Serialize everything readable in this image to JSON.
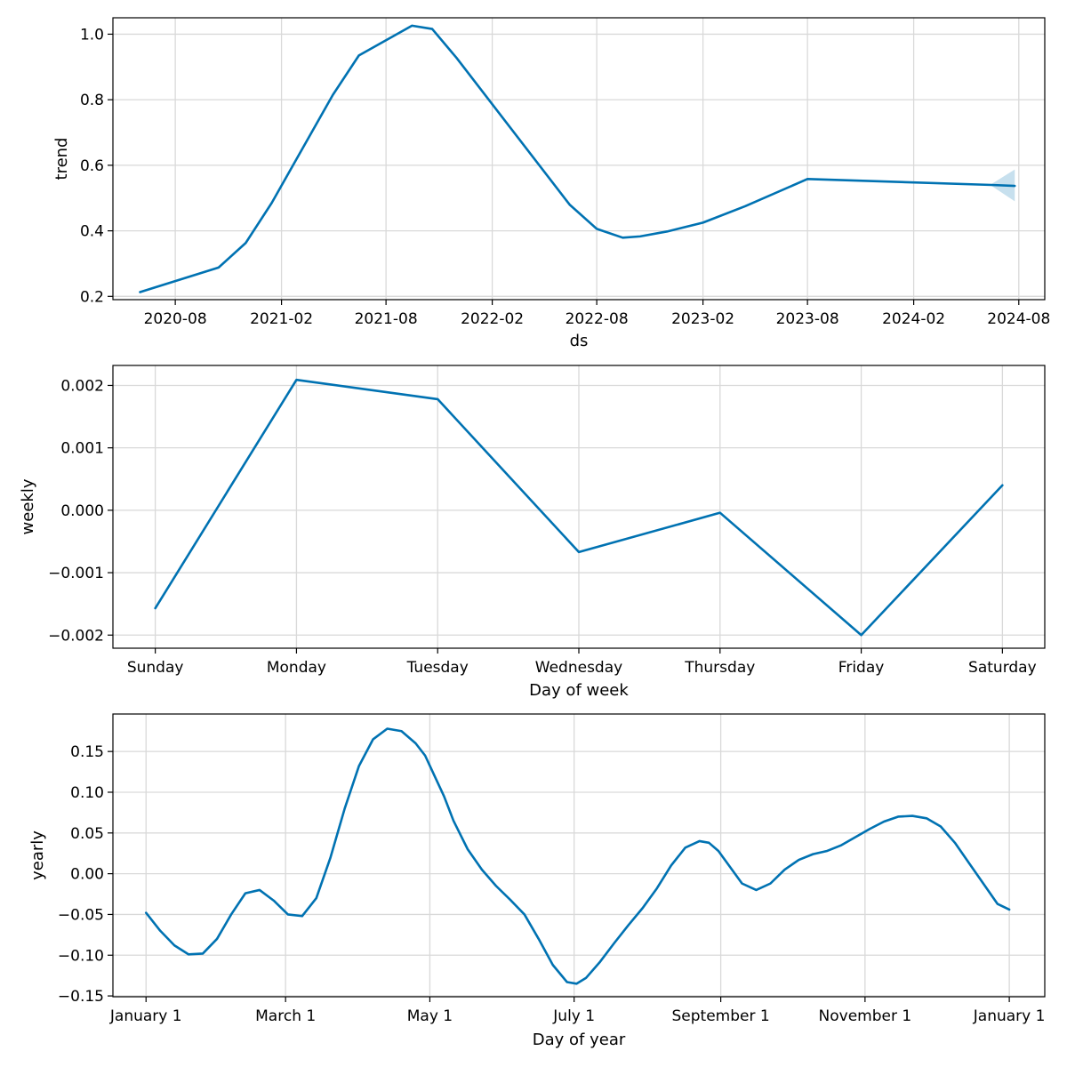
{
  "colors": {
    "line": "#0072B2",
    "band": "#0072B2",
    "grid": "#d9d9d9"
  },
  "chart_data": [
    {
      "type": "line",
      "xlabel": "ds",
      "ylabel": "trend",
      "x_type": "date",
      "xlim": [
        "2020-04-15",
        "2024-09-15"
      ],
      "ylim": [
        0.19,
        1.05
      ],
      "grid": true,
      "x_ticks": [
        {
          "value": "2020-08-01",
          "label": "2020-08"
        },
        {
          "value": "2021-02-01",
          "label": "2021-02"
        },
        {
          "value": "2021-08-01",
          "label": "2021-08"
        },
        {
          "value": "2022-02-01",
          "label": "2022-02"
        },
        {
          "value": "2022-08-01",
          "label": "2022-08"
        },
        {
          "value": "2023-02-01",
          "label": "2023-02"
        },
        {
          "value": "2023-08-01",
          "label": "2023-08"
        },
        {
          "value": "2024-02-01",
          "label": "2024-02"
        },
        {
          "value": "2024-08-01",
          "label": "2024-08"
        }
      ],
      "y_ticks": [
        {
          "value": 0.2,
          "label": "0.2"
        },
        {
          "value": 0.4,
          "label": "0.4"
        },
        {
          "value": 0.6,
          "label": "0.6"
        },
        {
          "value": 0.8,
          "label": "0.8"
        },
        {
          "value": 1.0,
          "label": "1.0"
        }
      ],
      "series": [
        {
          "x": [
            "2020-06-01",
            "2020-10-15",
            "2020-12-01",
            "2021-01-15",
            "2021-05-01",
            "2021-06-15",
            "2021-09-15",
            "2021-10-20",
            "2021-12-01",
            "2022-06-15",
            "2022-08-01",
            "2022-09-15",
            "2022-10-15",
            "2022-12-01",
            "2023-02-01",
            "2023-04-15",
            "2023-08-01",
            "2024-06-15",
            "2024-07-25"
          ],
          "y": [
            0.213,
            0.288,
            0.363,
            0.485,
            0.815,
            0.935,
            1.026,
            1.016,
            0.928,
            0.48,
            0.406,
            0.379,
            0.383,
            0.398,
            0.425,
            0.475,
            0.558,
            0.54,
            0.537
          ]
        }
      ],
      "band": {
        "x": [
          "2024-06-15",
          "2024-07-25"
        ],
        "lower": [
          0.537,
          0.49
        ],
        "upper": [
          0.543,
          0.587
        ]
      }
    },
    {
      "type": "line",
      "xlabel": "Day of week",
      "ylabel": "weekly",
      "xlim": [
        -0.3,
        6.3
      ],
      "ylim": [
        -0.00221,
        0.00232
      ],
      "grid": true,
      "categories": [
        "Sunday",
        "Monday",
        "Tuesday",
        "Wednesday",
        "Thursday",
        "Friday",
        "Saturday"
      ],
      "y_ticks": [
        {
          "value": -0.002,
          "label": "−0.002"
        },
        {
          "value": -0.001,
          "label": "−0.001"
        },
        {
          "value": 0.0,
          "label": "0.000"
        },
        {
          "value": 0.001,
          "label": "0.001"
        },
        {
          "value": 0.002,
          "label": "0.002"
        }
      ],
      "series": [
        {
          "values": [
            -0.00157,
            0.00209,
            0.00178,
            -0.00067,
            -4e-05,
            -0.002,
            0.0004
          ]
        }
      ]
    },
    {
      "type": "line",
      "xlabel": "Day of year",
      "ylabel": "yearly",
      "xlim": [
        -14,
        380
      ],
      "ylim": [
        -0.151,
        0.196
      ],
      "grid": true,
      "x_ticks": [
        {
          "value": 0,
          "label": "January 1"
        },
        {
          "value": 59,
          "label": "March 1"
        },
        {
          "value": 120,
          "label": "May 1"
        },
        {
          "value": 181,
          "label": "July 1"
        },
        {
          "value": 243,
          "label": "September 1"
        },
        {
          "value": 304,
          "label": "November 1"
        },
        {
          "value": 365,
          "label": "January 1"
        }
      ],
      "y_ticks": [
        {
          "value": -0.15,
          "label": "−0.15"
        },
        {
          "value": -0.1,
          "label": "−0.10"
        },
        {
          "value": -0.05,
          "label": "−0.05"
        },
        {
          "value": 0.0,
          "label": "0.00"
        },
        {
          "value": 0.05,
          "label": "0.05"
        },
        {
          "value": 0.1,
          "label": "0.10"
        },
        {
          "value": 0.15,
          "label": "0.15"
        }
      ],
      "series": [
        {
          "x": [
            0,
            6,
            12,
            18,
            24,
            30,
            36,
            42,
            48,
            54,
            60,
            66,
            72,
            78,
            84,
            90,
            96,
            102,
            108,
            114,
            118,
            122,
            126,
            130,
            136,
            142,
            148,
            154,
            160,
            166,
            172,
            178,
            182,
            186,
            192,
            198,
            204,
            210,
            216,
            222,
            228,
            234,
            238,
            242,
            246,
            252,
            258,
            264,
            270,
            276,
            282,
            288,
            294,
            300,
            306,
            312,
            318,
            324,
            330,
            336,
            342,
            348,
            354,
            360,
            365
          ],
          "y": [
            -0.048,
            -0.07,
            -0.088,
            -0.099,
            -0.098,
            -0.08,
            -0.05,
            -0.024,
            -0.02,
            -0.033,
            -0.05,
            -0.052,
            -0.03,
            0.02,
            0.08,
            0.132,
            0.165,
            0.178,
            0.175,
            0.16,
            0.145,
            0.12,
            0.095,
            0.065,
            0.03,
            0.005,
            -0.015,
            -0.032,
            -0.05,
            -0.08,
            -0.112,
            -0.133,
            -0.135,
            -0.128,
            -0.108,
            -0.085,
            -0.063,
            -0.042,
            -0.018,
            0.01,
            0.032,
            0.04,
            0.038,
            0.028,
            0.012,
            -0.012,
            -0.02,
            -0.012,
            0.005,
            0.017,
            0.024,
            0.028,
            0.035,
            0.045,
            0.055,
            0.064,
            0.07,
            0.071,
            0.068,
            0.058,
            0.038,
            0.013,
            -0.012,
            -0.037,
            -0.044
          ]
        }
      ]
    }
  ]
}
